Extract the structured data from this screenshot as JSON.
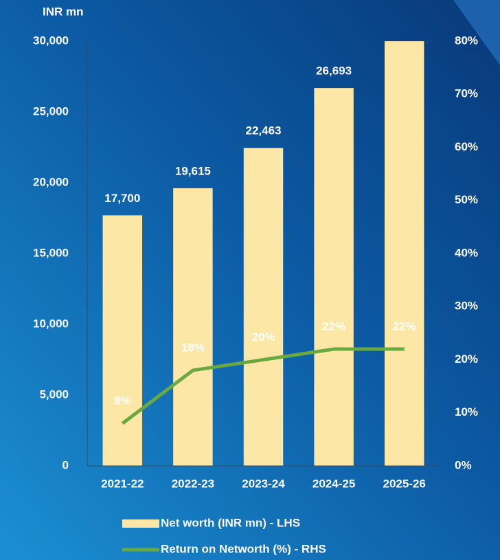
{
  "chart_data": {
    "type": "bar",
    "y_axis_label": "INR mn",
    "categories": [
      "2021-22",
      "2022-23",
      "2023-24",
      "2024-25",
      "2025-26"
    ],
    "series": [
      {
        "name": "Net worth (INR mn) - LHS",
        "color": "#fde7a6",
        "type": "bar",
        "values": [
          17700,
          19615,
          22463,
          26693,
          30000
        ],
        "value_labels": [
          "17,700",
          "19,615",
          "22,463",
          "26,693",
          null
        ]
      },
      {
        "name": "Return on Networth (%) - RHS",
        "color": "#6aa842",
        "type": "line",
        "axis": "y2",
        "values": [
          8,
          18,
          20,
          22,
          22
        ],
        "value_labels": [
          "8%",
          "18%",
          "20%",
          "22%",
          "22%"
        ]
      }
    ],
    "ylim": [
      0,
      30000
    ],
    "yticks": [
      {
        "value": 0,
        "label": "0"
      },
      {
        "value": 5000,
        "label": "5,000"
      },
      {
        "value": 10000,
        "label": "10,000"
      },
      {
        "value": 15000,
        "label": "15,000"
      },
      {
        "value": 20000,
        "label": "20,000"
      },
      {
        "value": 25000,
        "label": "25,000"
      },
      {
        "value": 30000,
        "label": "30,000"
      }
    ],
    "y2lim": [
      0,
      80
    ],
    "y2ticks": [
      {
        "value": 0,
        "label": "0%"
      },
      {
        "value": 10,
        "label": "10%"
      },
      {
        "value": 20,
        "label": "20%"
      },
      {
        "value": 30,
        "label": "30%"
      },
      {
        "value": 40,
        "label": "40%"
      },
      {
        "value": 50,
        "label": "50%"
      },
      {
        "value": 60,
        "label": "60%"
      },
      {
        "value": 70,
        "label": "70%"
      },
      {
        "value": 80,
        "label": "80%"
      }
    ],
    "legend": "bottom"
  }
}
